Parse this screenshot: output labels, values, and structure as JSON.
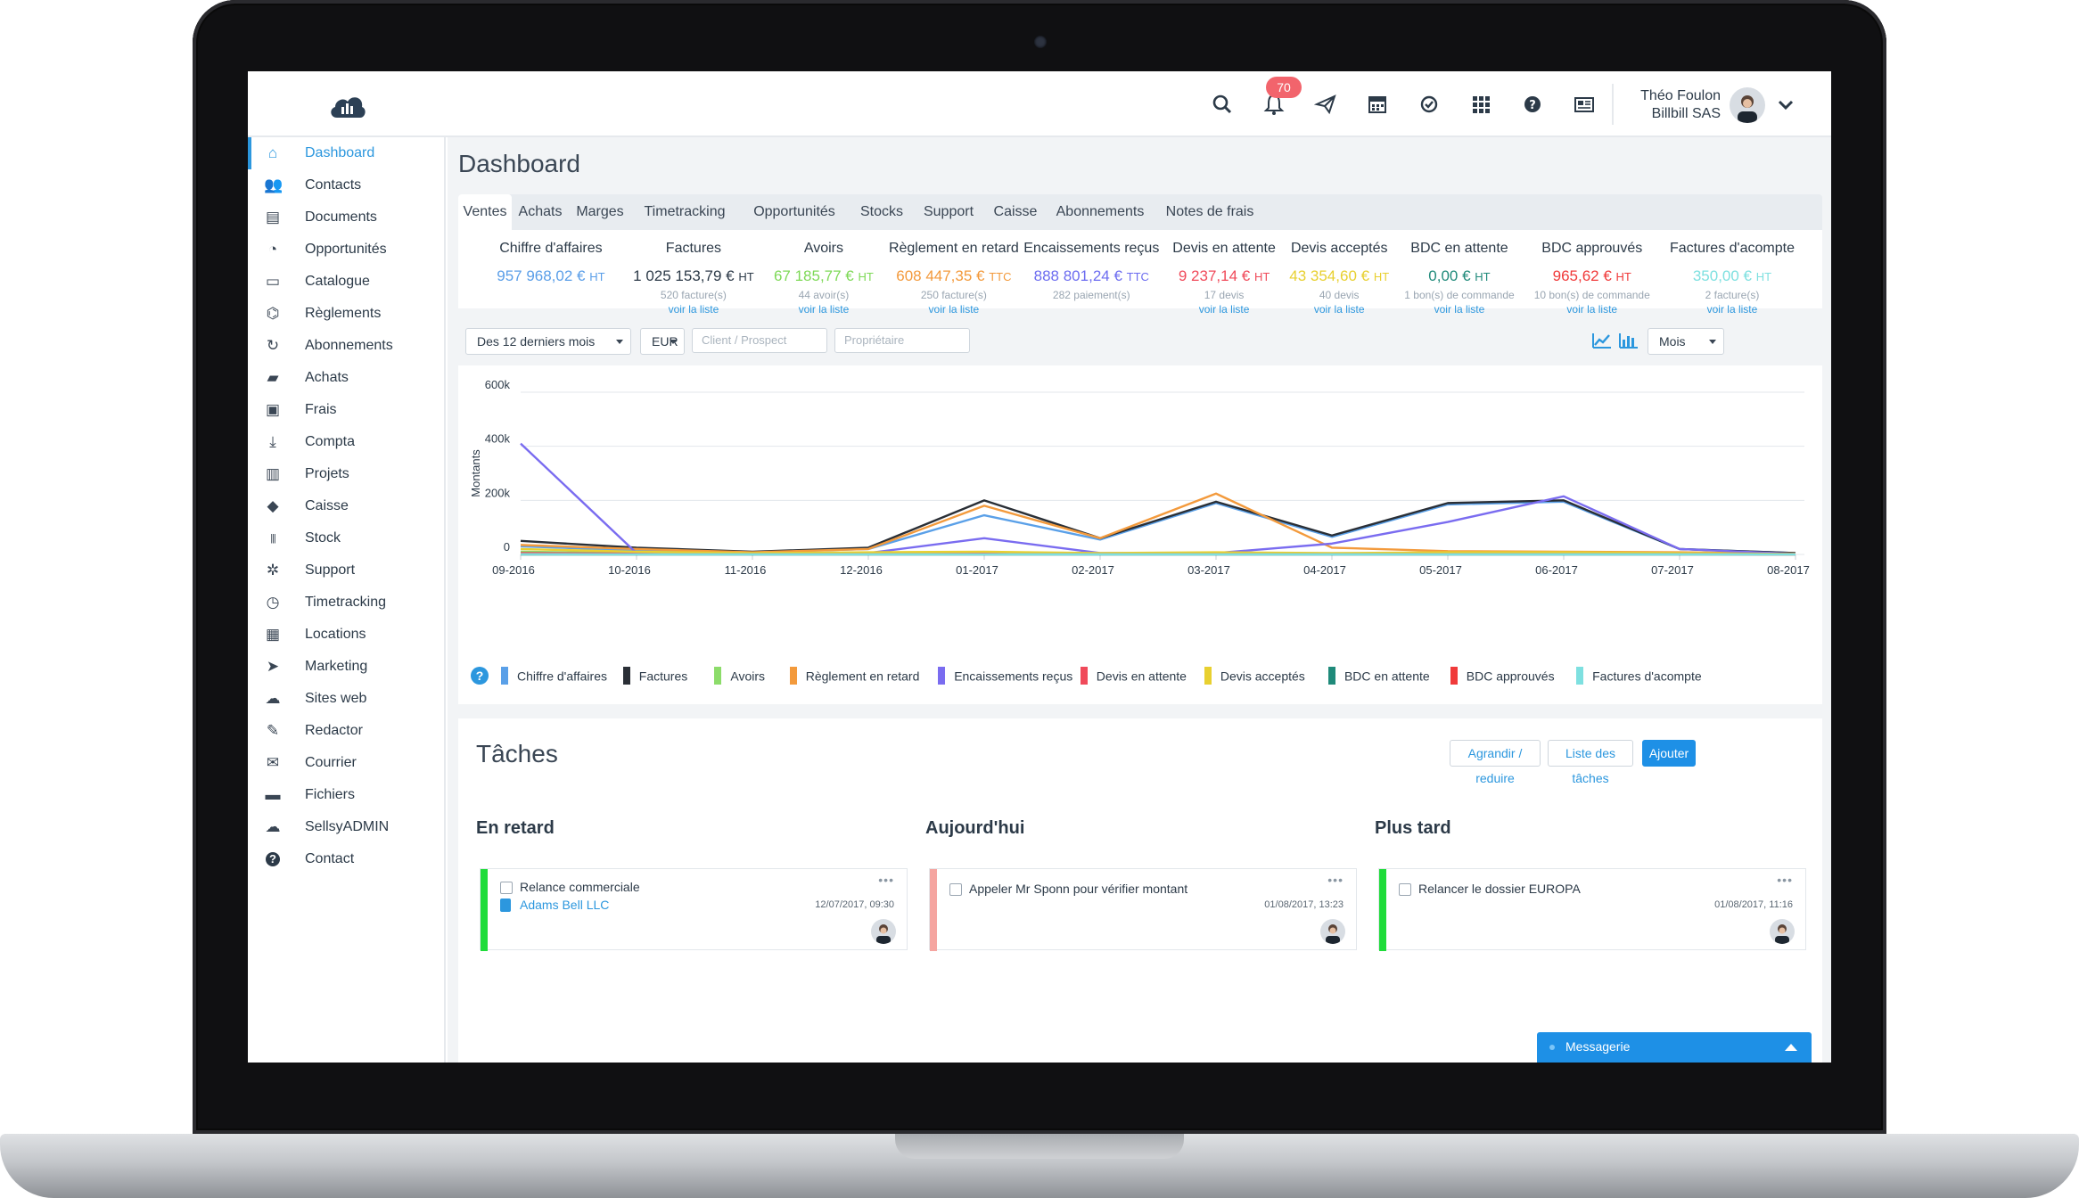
{
  "header": {
    "notifications_count": "70",
    "user_name": "Théo Foulon",
    "company": "Billbill SAS",
    "icons": [
      "search-icon",
      "bell-icon",
      "paper-plane-icon",
      "calendar-icon",
      "check-circle-icon",
      "apps-grid-icon",
      "help-icon",
      "newspaper-icon",
      "chevron-down-icon"
    ]
  },
  "sidebar": {
    "items": [
      {
        "label": "Dashboard",
        "icon": "home-icon",
        "active": true
      },
      {
        "label": "Contacts",
        "icon": "users-icon"
      },
      {
        "label": "Documents",
        "icon": "document-icon"
      },
      {
        "label": "Opportunités",
        "icon": "gauge-icon"
      },
      {
        "label": "Catalogue",
        "icon": "folder-open-icon"
      },
      {
        "label": "Règlements",
        "icon": "bank-icon"
      },
      {
        "label": "Abonnements",
        "icon": "refresh-icon"
      },
      {
        "label": "Achats",
        "icon": "truck-icon"
      },
      {
        "label": "Frais",
        "icon": "money-icon"
      },
      {
        "label": "Compta",
        "icon": "download-icon"
      },
      {
        "label": "Projets",
        "icon": "columns-icon"
      },
      {
        "label": "Caisse",
        "icon": "tags-icon"
      },
      {
        "label": "Stock",
        "icon": "barcode-icon"
      },
      {
        "label": "Support",
        "icon": "bug-icon"
      },
      {
        "label": "Timetracking",
        "icon": "clock-icon"
      },
      {
        "label": "Locations",
        "icon": "calendar-icon"
      },
      {
        "label": "Marketing",
        "icon": "paper-plane-icon"
      },
      {
        "label": "Sites web",
        "icon": "cloud-icon"
      },
      {
        "label": "Redactor",
        "icon": "edit-icon"
      },
      {
        "label": "Courrier",
        "icon": "envelope-icon"
      },
      {
        "label": "Fichiers",
        "icon": "briefcase-icon"
      },
      {
        "label": "SellsyADMIN",
        "icon": "cloud-chart-icon"
      },
      {
        "label": "Contact",
        "icon": "help-icon"
      }
    ]
  },
  "page": {
    "title": "Dashboard"
  },
  "tabs": [
    "Ventes",
    "Achats",
    "Marges",
    "Timetracking",
    "Opportunités",
    "Stocks",
    "Support",
    "Caisse",
    "Abonnements",
    "Notes de frais"
  ],
  "kpis": [
    {
      "title": "Chiffre d'affaires",
      "value": "957 968,02 €",
      "unit": "HT",
      "sub": "",
      "link": "",
      "color": "#5a9ee8"
    },
    {
      "title": "Factures",
      "value": "1 025 153,79 €",
      "unit": "HT",
      "sub": "520 facture(s)",
      "link": "voir la liste",
      "color": "#2c3a48"
    },
    {
      "title": "Avoirs",
      "value": "67 185,77 €",
      "unit": "HT",
      "sub": "44 avoir(s)",
      "link": "voir la liste",
      "color": "#7ed957"
    },
    {
      "title": "Règlement en retard",
      "value": "608 447,35 €",
      "unit": "TTC",
      "sub": "250 facture(s)",
      "link": "voir la liste",
      "color": "#f39a3c"
    },
    {
      "title": "Encaissements reçus",
      "value": "888 801,24 €",
      "unit": "TTC",
      "sub": "282 paiement(s)",
      "link": "",
      "color": "#6c6cf0"
    },
    {
      "title": "Devis en attente",
      "value": "9 237,14 €",
      "unit": "HT",
      "sub": "17 devis",
      "link": "voir la liste",
      "color": "#f04a5a"
    },
    {
      "title": "Devis acceptés",
      "value": "43 354,60 €",
      "unit": "HT",
      "sub": "40 devis",
      "link": "voir la liste",
      "color": "#e8d030"
    },
    {
      "title": "BDC en attente",
      "value": "0,00 €",
      "unit": "HT",
      "sub": "1 bon(s) de commande",
      "link": "voir la liste",
      "color": "#1f8a7a"
    },
    {
      "title": "BDC approuvés",
      "value": "965,62 €",
      "unit": "HT",
      "sub": "10 bon(s) de commande",
      "link": "voir la liste",
      "color": "#f03a3a"
    },
    {
      "title": "Factures d'acompte",
      "value": "350,00 €",
      "unit": "HT",
      "sub": "2 facture(s)",
      "link": "voir la liste",
      "color": "#7ee0e0"
    }
  ],
  "filters": {
    "period": "Des 12 derniers mois",
    "currency": "EUR",
    "client_placeholder": "Client / Prospect",
    "owner_placeholder": "Propriétaire",
    "granularity": "Mois"
  },
  "chart_data": {
    "type": "line",
    "ylabel": "Montants",
    "ylim": [
      0,
      600000
    ],
    "y_ticks": [
      "0",
      "200k",
      "400k",
      "600k"
    ],
    "y_tick_values": [
      0,
      200000,
      400000,
      600000
    ],
    "grid": true,
    "legend_position": "bottom",
    "categories": [
      "09-2016",
      "10-2016",
      "11-2016",
      "12-2016",
      "01-2017",
      "02-2017",
      "03-2017",
      "04-2017",
      "05-2017",
      "06-2017",
      "07-2017",
      "08-2017"
    ],
    "series": [
      {
        "name": "Chiffre d'affaires",
        "color": "#5aa0e8",
        "values": [
          30000,
          15000,
          8000,
          20000,
          145000,
          55000,
          190000,
          65000,
          185000,
          195000,
          20000,
          5000
        ]
      },
      {
        "name": "Factures",
        "color": "#2a2f36",
        "values": [
          50000,
          25000,
          10000,
          25000,
          200000,
          60000,
          195000,
          70000,
          190000,
          200000,
          20000,
          5000
        ]
      },
      {
        "name": "Avoirs",
        "color": "#8cdc6a",
        "values": [
          10000,
          5000,
          2000,
          5000,
          5000,
          2000,
          3000,
          2000,
          3000,
          5000,
          3000,
          1000
        ]
      },
      {
        "name": "Règlement en retard",
        "color": "#f39a3c",
        "values": [
          35000,
          20000,
          8000,
          20000,
          180000,
          60000,
          225000,
          25000,
          12000,
          10000,
          8000,
          3000
        ]
      },
      {
        "name": "Encaissements reçus",
        "color": "#7a6cf0",
        "values": [
          410000,
          5000,
          3000,
          5000,
          60000,
          5000,
          5000,
          40000,
          120000,
          215000,
          20000,
          2000
        ]
      },
      {
        "name": "Devis en attente",
        "color": "#f04a5a",
        "values": [
          5000,
          3000,
          2000,
          2000,
          3000,
          2000,
          2000,
          2000,
          2000,
          3000,
          2000,
          1000
        ]
      },
      {
        "name": "Devis acceptés",
        "color": "#e8d030",
        "values": [
          20000,
          10000,
          5000,
          8000,
          10000,
          5000,
          8000,
          5000,
          8000,
          8000,
          5000,
          2000
        ]
      },
      {
        "name": "BDC en attente",
        "color": "#1f8a7a",
        "values": [
          0,
          0,
          0,
          0,
          0,
          0,
          0,
          0,
          0,
          0,
          0,
          0
        ]
      },
      {
        "name": "BDC approuvés",
        "color": "#f03a3a",
        "values": [
          2000,
          1000,
          1000,
          1000,
          1000,
          1000,
          1000,
          1000,
          1000,
          1000,
          1000,
          0
        ]
      },
      {
        "name": "Factures d'acompte",
        "color": "#7ee0e0",
        "values": [
          1000,
          500,
          500,
          500,
          500,
          500,
          500,
          500,
          500,
          500,
          500,
          0
        ]
      }
    ]
  },
  "tasks": {
    "title": "Tâches",
    "buttons": {
      "toggle": "Agrandir / reduire",
      "list": "Liste des tâches",
      "add": "Ajouter"
    },
    "columns": [
      {
        "title": "En retard",
        "color": "#1fdc3a",
        "task": {
          "text": "Relance commerciale",
          "link": "Adams Bell LLC",
          "date": "12/07/2017, 09:30"
        }
      },
      {
        "title": "Aujourd'hui",
        "color": "#f5a5a0",
        "task": {
          "text": "Appeler Mr Sponn pour vérifier montant",
          "link": "",
          "date": "01/08/2017, 13:23"
        }
      },
      {
        "title": "Plus tard",
        "color": "#1fdc3a",
        "task": {
          "text": "Relancer le dossier EUROPA",
          "link": "",
          "date": "01/08/2017, 11:16"
        }
      }
    ]
  },
  "messagerie": {
    "label": "Messagerie"
  }
}
